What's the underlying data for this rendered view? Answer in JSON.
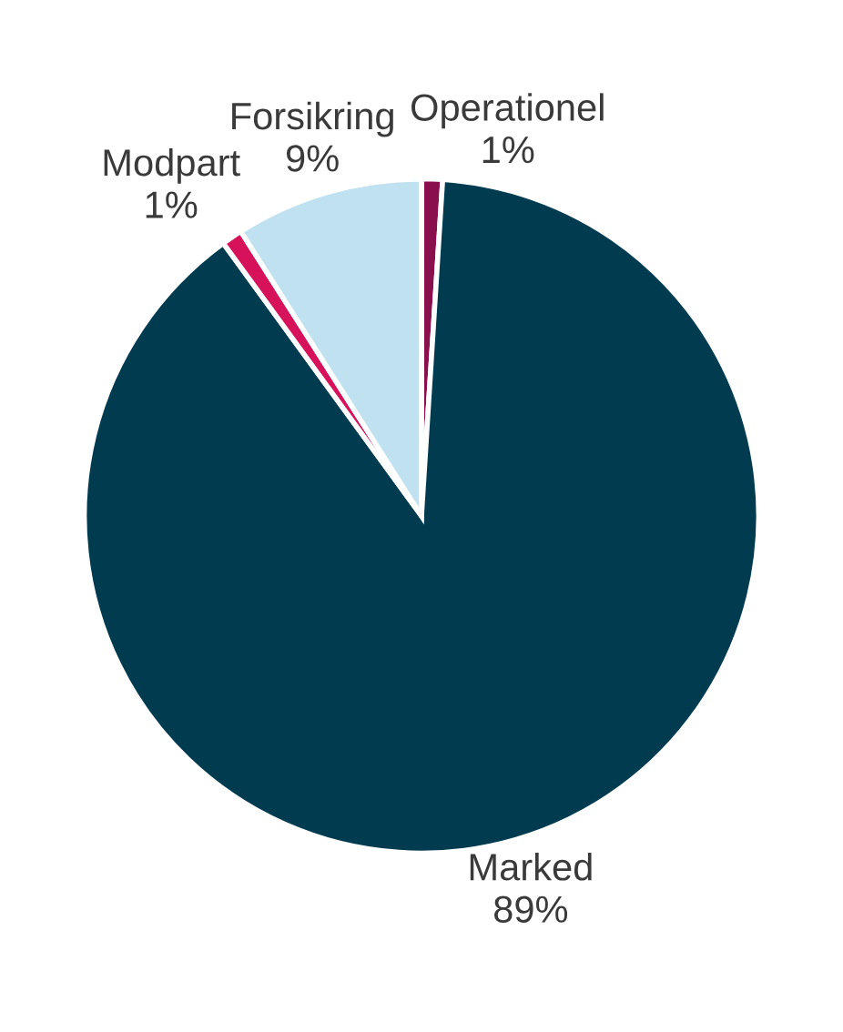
{
  "chart_data": {
    "type": "pie",
    "categories": [
      "Operationel",
      "Marked",
      "Modpart",
      "Forsikring"
    ],
    "values": [
      1,
      89,
      1,
      9
    ],
    "value_labels": [
      "1%",
      "89%",
      "1%",
      "9%"
    ],
    "colors": [
      "#8a0f4d",
      "#003b50",
      "#d6135a",
      "#bfe1f0"
    ]
  }
}
